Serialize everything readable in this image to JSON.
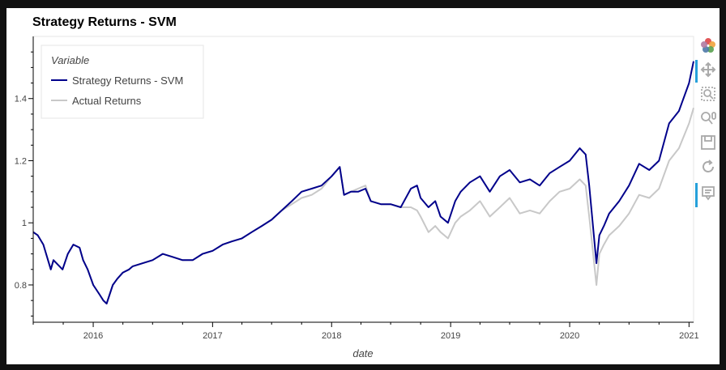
{
  "chart_data": {
    "type": "line",
    "title": "Strategy Returns - SVM",
    "xlabel": "date",
    "ylabel": "",
    "xlim": [
      "2015-07-01",
      "2021-01-15"
    ],
    "ylim": [
      0.68,
      1.6
    ],
    "x_ticks": [
      "2016",
      "2017",
      "2018",
      "2019",
      "2020",
      "2021"
    ],
    "y_ticks": [
      0.8,
      1.0,
      1.2,
      1.4
    ],
    "y_tick_labels": [
      "0.8",
      "1",
      "1.2",
      "1.4"
    ],
    "grid": false,
    "legend": {
      "title": "Variable",
      "placement": "top-left",
      "entries": [
        "Strategy Returns - SVM",
        "Actual Returns"
      ]
    },
    "dates": [
      "2015-07-01",
      "2015-07-15",
      "2015-08-01",
      "2015-08-24",
      "2015-09-01",
      "2015-09-29",
      "2015-10-15",
      "2015-11-01",
      "2015-11-20",
      "2015-12-01",
      "2015-12-15",
      "2016-01-01",
      "2016-01-20",
      "2016-02-01",
      "2016-02-11",
      "2016-03-01",
      "2016-03-15",
      "2016-04-01",
      "2016-04-20",
      "2016-05-01",
      "2016-06-01",
      "2016-07-01",
      "2016-08-01",
      "2016-09-01",
      "2016-10-01",
      "2016-11-01",
      "2016-12-01",
      "2017-01-01",
      "2017-02-01",
      "2017-03-01",
      "2017-04-01",
      "2017-05-01",
      "2017-06-01",
      "2017-07-01",
      "2017-08-01",
      "2017-09-01",
      "2017-10-01",
      "2017-11-01",
      "2017-12-01",
      "2018-01-01",
      "2018-01-26",
      "2018-02-08",
      "2018-03-01",
      "2018-03-23",
      "2018-04-15",
      "2018-05-01",
      "2018-06-01",
      "2018-07-01",
      "2018-08-01",
      "2018-09-01",
      "2018-09-20",
      "2018-10-01",
      "2018-10-25",
      "2018-11-15",
      "2018-12-01",
      "2018-12-24",
      "2019-01-15",
      "2019-02-01",
      "2019-03-01",
      "2019-04-01",
      "2019-05-01",
      "2019-06-01",
      "2019-07-01",
      "2019-08-01",
      "2019-09-01",
      "2019-10-01",
      "2019-11-01",
      "2019-12-01",
      "2020-01-01",
      "2020-02-01",
      "2020-02-19",
      "2020-03-01",
      "2020-03-23",
      "2020-04-01",
      "2020-04-15",
      "2020-05-01",
      "2020-06-01",
      "2020-07-01",
      "2020-08-01",
      "2020-09-01",
      "2020-10-01",
      "2020-11-01",
      "2020-12-01",
      "2021-01-01",
      "2021-01-15"
    ],
    "series": [
      {
        "name": "Strategy Returns - SVM",
        "color": "#00008b",
        "values": [
          0.97,
          0.96,
          0.93,
          0.85,
          0.88,
          0.85,
          0.9,
          0.93,
          0.92,
          0.88,
          0.85,
          0.8,
          0.77,
          0.75,
          0.74,
          0.8,
          0.82,
          0.84,
          0.85,
          0.86,
          0.87,
          0.88,
          0.9,
          0.89,
          0.88,
          0.88,
          0.9,
          0.91,
          0.93,
          0.94,
          0.95,
          0.97,
          0.99,
          1.01,
          1.04,
          1.07,
          1.1,
          1.11,
          1.12,
          1.15,
          1.18,
          1.09,
          1.1,
          1.1,
          1.11,
          1.07,
          1.06,
          1.06,
          1.05,
          1.11,
          1.12,
          1.08,
          1.05,
          1.07,
          1.02,
          1.0,
          1.07,
          1.1,
          1.13,
          1.15,
          1.1,
          1.15,
          1.17,
          1.13,
          1.14,
          1.12,
          1.16,
          1.18,
          1.2,
          1.24,
          1.22,
          1.12,
          0.87,
          0.96,
          0.99,
          1.03,
          1.07,
          1.12,
          1.19,
          1.17,
          1.2,
          1.32,
          1.36,
          1.45,
          1.52
        ]
      },
      {
        "name": "Actual Returns",
        "color": "#c8c8c8",
        "values": [
          0.97,
          0.96,
          0.93,
          0.85,
          0.88,
          0.85,
          0.9,
          0.93,
          0.92,
          0.88,
          0.85,
          0.8,
          0.77,
          0.75,
          0.74,
          0.8,
          0.82,
          0.84,
          0.85,
          0.86,
          0.87,
          0.88,
          0.9,
          0.89,
          0.88,
          0.88,
          0.9,
          0.91,
          0.93,
          0.94,
          0.95,
          0.97,
          0.99,
          1.01,
          1.04,
          1.06,
          1.08,
          1.09,
          1.11,
          1.15,
          1.18,
          1.09,
          1.1,
          1.11,
          1.12,
          1.07,
          1.06,
          1.06,
          1.05,
          1.05,
          1.04,
          1.02,
          0.97,
          0.99,
          0.97,
          0.95,
          1.0,
          1.02,
          1.04,
          1.07,
          1.02,
          1.05,
          1.08,
          1.03,
          1.04,
          1.03,
          1.07,
          1.1,
          1.11,
          1.14,
          1.12,
          1.02,
          0.8,
          0.9,
          0.93,
          0.96,
          0.99,
          1.03,
          1.09,
          1.08,
          1.11,
          1.2,
          1.24,
          1.32,
          1.37
        ]
      }
    ]
  },
  "toolbar": {
    "tools": [
      "bokeh-logo-icon",
      "pan-icon",
      "box-zoom-icon",
      "wheel-zoom-icon",
      "save-icon",
      "reset-icon",
      "hover-icon"
    ]
  }
}
